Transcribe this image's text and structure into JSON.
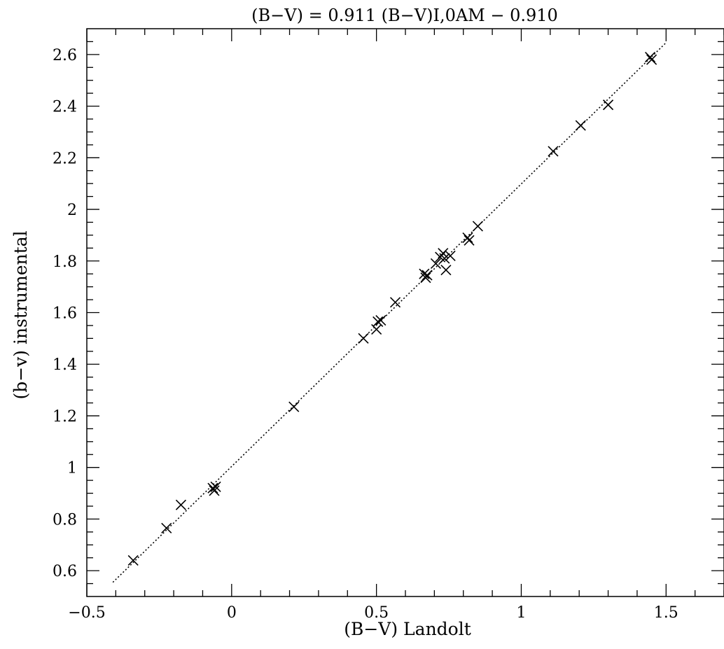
{
  "chart_data": {
    "type": "scatter",
    "title": "(B−V) = 0.911 (B−V)I,0AM  − 0.910",
    "xlabel": "(B−V) Landolt",
    "ylabel": "(b−v) instrumental",
    "xlim": [
      -0.5,
      1.7
    ],
    "ylim": [
      0.5,
      2.7
    ],
    "x_ticks": [
      -0.5,
      0,
      0.5,
      1,
      1.5
    ],
    "x_tick_labels": [
      "−0.5",
      "0",
      "0.5",
      "1",
      "1.5"
    ],
    "y_ticks": [
      0.6,
      0.8,
      1,
      1.2,
      1.4,
      1.6,
      1.8,
      2,
      2.2,
      2.4,
      2.6
    ],
    "y_tick_labels": [
      "0.6",
      "0.8",
      "1",
      "1.2",
      "1.4",
      "1.6",
      "1.8",
      "2",
      "2.2",
      "2.4",
      "2.6"
    ],
    "grid": false,
    "fit_line": {
      "style": "dotted",
      "x": [
        -0.41,
        1.5
      ],
      "y": [
        0.555,
        2.646
      ]
    },
    "marker": "x",
    "points": [
      {
        "x": -0.34,
        "y": 0.64
      },
      {
        "x": -0.225,
        "y": 0.765
      },
      {
        "x": -0.175,
        "y": 0.855
      },
      {
        "x": -0.065,
        "y": 0.92
      },
      {
        "x": -0.06,
        "y": 0.91
      },
      {
        "x": -0.055,
        "y": 0.925
      },
      {
        "x": 0.215,
        "y": 1.235
      },
      {
        "x": 0.455,
        "y": 1.5
      },
      {
        "x": 0.5,
        "y": 1.535
      },
      {
        "x": 0.505,
        "y": 1.565
      },
      {
        "x": 0.515,
        "y": 1.57
      },
      {
        "x": 0.565,
        "y": 1.64
      },
      {
        "x": 0.665,
        "y": 1.75
      },
      {
        "x": 0.67,
        "y": 1.735
      },
      {
        "x": 0.675,
        "y": 1.745
      },
      {
        "x": 0.705,
        "y": 1.79
      },
      {
        "x": 0.72,
        "y": 1.815
      },
      {
        "x": 0.73,
        "y": 1.83
      },
      {
        "x": 0.735,
        "y": 1.81
      },
      {
        "x": 0.74,
        "y": 1.765
      },
      {
        "x": 0.755,
        "y": 1.82
      },
      {
        "x": 0.815,
        "y": 1.89
      },
      {
        "x": 0.82,
        "y": 1.88
      },
      {
        "x": 0.85,
        "y": 1.935
      },
      {
        "x": 1.11,
        "y": 2.225
      },
      {
        "x": 1.205,
        "y": 2.325
      },
      {
        "x": 1.3,
        "y": 2.405
      },
      {
        "x": 1.445,
        "y": 2.59
      },
      {
        "x": 1.45,
        "y": 2.58
      }
    ]
  }
}
